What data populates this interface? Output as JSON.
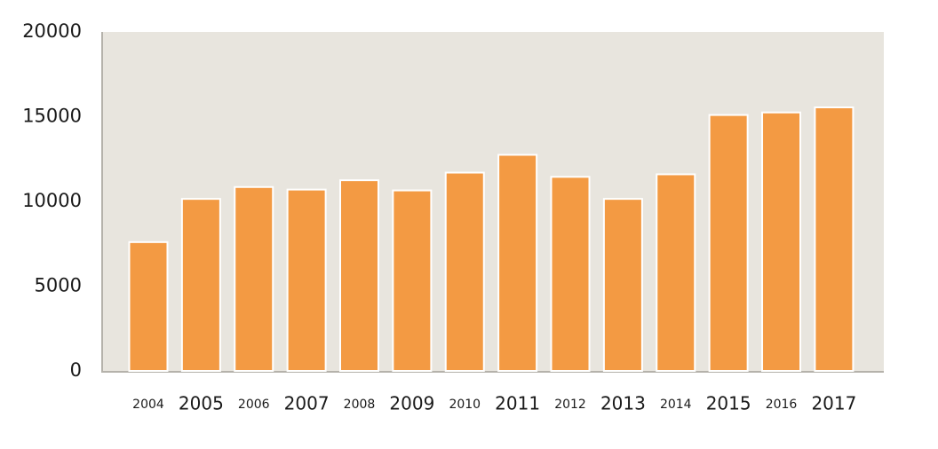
{
  "chart_data": {
    "type": "bar",
    "categories": [
      "2004",
      "2005",
      "2006",
      "2007",
      "2008",
      "2009",
      "2010",
      "2011",
      "2012",
      "2013",
      "2014",
      "2015",
      "2016",
      "2017"
    ],
    "values": [
      7600,
      10150,
      10850,
      10700,
      11250,
      10650,
      11700,
      12750,
      11450,
      10150,
      11600,
      15100,
      15250,
      15550
    ],
    "color": "#f39a43",
    "ylim": [
      0,
      20000
    ],
    "yticks": [
      0,
      5000,
      10000,
      15000,
      20000
    ],
    "grid": false
  }
}
